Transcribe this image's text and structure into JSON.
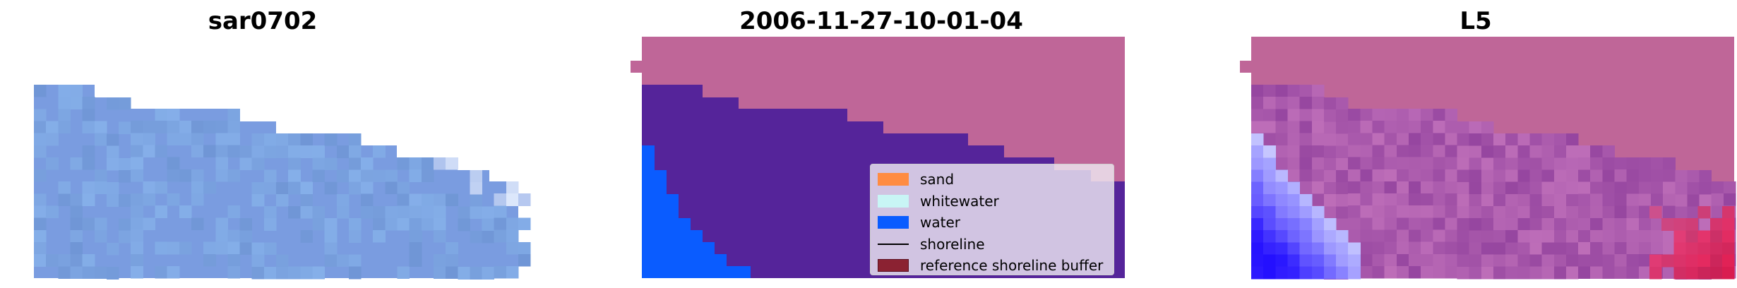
{
  "panels": [
    {
      "title": "sar0702"
    },
    {
      "title": "2006-11-27-10-01-04"
    },
    {
      "title": "L5"
    }
  ],
  "legend": {
    "items": [
      {
        "label": "sand",
        "kind": "patch",
        "color": "#ff8c42"
      },
      {
        "label": "whitewater",
        "kind": "patch",
        "color": "#c8f5f5"
      },
      {
        "label": "water",
        "kind": "patch",
        "color": "#0a5cff"
      },
      {
        "label": "shoreline",
        "kind": "line",
        "color": "#000000"
      },
      {
        "label": "reference shoreline buffer",
        "kind": "patch",
        "color": "#8b2232"
      }
    ]
  },
  "colors": {
    "rgb_water": "#7a9ce0",
    "land": "#bf6698",
    "water_class": "#55249a",
    "water_blue": "#0a5cff"
  }
}
